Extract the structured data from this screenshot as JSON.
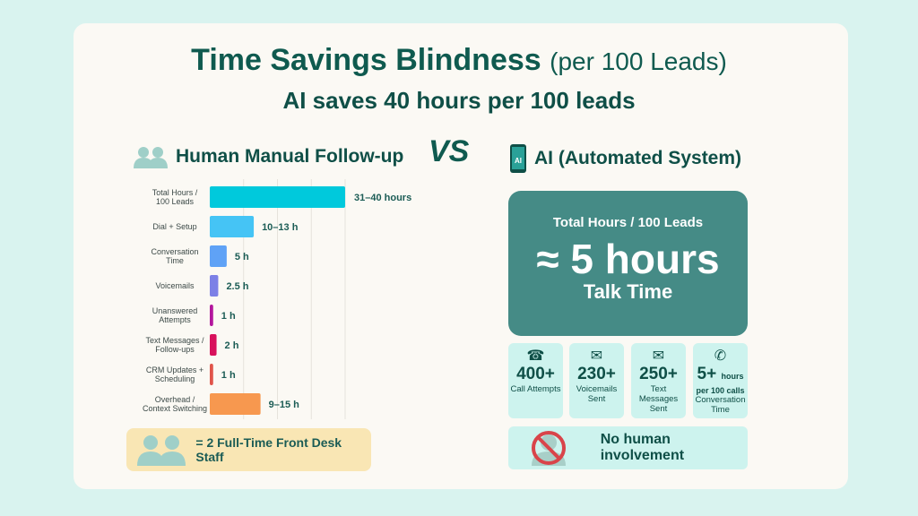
{
  "title": {
    "main": "Time Savings Blindness",
    "qualifier": "(per 100 Leads)",
    "subtitle": "AI saves 40 hours per 100 leads"
  },
  "left": {
    "heading": "Human Manual Follow-up",
    "staff_note": "= 2 Full-Time Front Desk Staff"
  },
  "vs": "VS",
  "right": {
    "heading": "AI (Automated System)",
    "icon_label": "AI",
    "box": {
      "label": "Total Hours / 100 Leads",
      "value": "≈ 5 hours",
      "caption": "Talk Time"
    },
    "tiles": [
      {
        "icon": "telephone-icon",
        "value": "400+",
        "label": "Call Attempts"
      },
      {
        "icon": "voicemail-envelope-icon",
        "value": "230+",
        "label": "Voicemails Sent"
      },
      {
        "icon": "text-message-envelope-icon",
        "value": "250+",
        "label": "Text Messages Sent"
      },
      {
        "icon": "phone-ringing-icon",
        "value": "5+",
        "unit": "hours",
        "unit2": "per 100 calls",
        "label": "Conversation Time"
      }
    ],
    "no_human": "No human involvement"
  },
  "chart_data": {
    "type": "bar",
    "orientation": "horizontal",
    "xlim": [
      0,
      40
    ],
    "grid": true,
    "categories": [
      "Total Hours / 100 Leads",
      "Dial + Setup",
      "Conversation Time",
      "Voicemails",
      "Unanswered Attempts",
      "Text Messages / Follow-ups",
      "CRM Updates + Scheduling",
      "Overhead / Context Switching"
    ],
    "values": [
      40,
      13,
      5,
      2.5,
      1,
      2,
      1,
      15
    ],
    "data_labels": [
      "31–40 hours",
      "10–13 h",
      "5 h",
      "2.5 h",
      "1 h",
      "2 h",
      "1 h",
      "9–15 h"
    ],
    "colors": [
      "#00c9dc",
      "#45c4f5",
      "#5fa2f6",
      "#7c80e6",
      "#b3169d",
      "#d8115c",
      "#e0544a",
      "#f7984f"
    ]
  }
}
